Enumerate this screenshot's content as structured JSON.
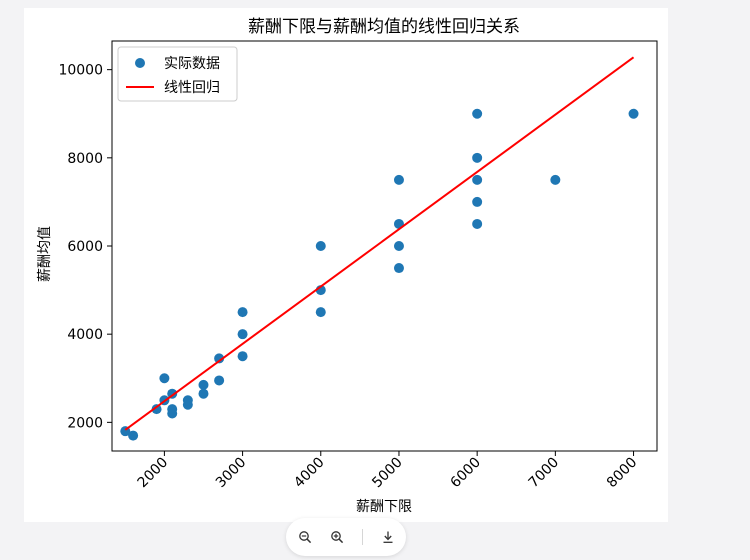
{
  "chart_data": {
    "type": "scatter",
    "title": "薪酬下限与薪酬均值的线性回归关系",
    "xlabel": "薪酬下限",
    "ylabel": "薪酬均值",
    "xlim": [
      1330,
      8300
    ],
    "ylim": [
      1350,
      10650
    ],
    "xticks": [
      2000,
      3000,
      4000,
      5000,
      6000,
      7000,
      8000
    ],
    "yticks": [
      2000,
      4000,
      6000,
      8000,
      10000
    ],
    "legend_position": "upper-left",
    "grid": false,
    "series": [
      {
        "name": "实际数据",
        "kind": "scatter",
        "color": "#1f77b4",
        "points": [
          [
            1500,
            1800
          ],
          [
            1600,
            1700
          ],
          [
            1900,
            2300
          ],
          [
            2000,
            2500
          ],
          [
            2000,
            3000
          ],
          [
            2100,
            2200
          ],
          [
            2100,
            2300
          ],
          [
            2100,
            2650
          ],
          [
            2300,
            2400
          ],
          [
            2300,
            2500
          ],
          [
            2500,
            2650
          ],
          [
            2500,
            2850
          ],
          [
            2700,
            2950
          ],
          [
            2700,
            3450
          ],
          [
            3000,
            3500
          ],
          [
            3000,
            4000
          ],
          [
            3000,
            4500
          ],
          [
            4000,
            4500
          ],
          [
            4000,
            5000
          ],
          [
            4000,
            6000
          ],
          [
            5000,
            5500
          ],
          [
            5000,
            6000
          ],
          [
            5000,
            6500
          ],
          [
            5000,
            7500
          ],
          [
            6000,
            6500
          ],
          [
            6000,
            7000
          ],
          [
            6000,
            7500
          ],
          [
            6000,
            8000
          ],
          [
            6000,
            9000
          ],
          [
            7000,
            7500
          ],
          [
            8000,
            9000
          ]
        ]
      },
      {
        "name": "线性回归",
        "kind": "line",
        "color": "#ff0000",
        "points": [
          [
            1500,
            1830
          ],
          [
            8000,
            10280
          ]
        ]
      }
    ]
  },
  "toolbar": {
    "zoom_out_icon": "zoom-out-icon",
    "zoom_in_icon": "zoom-in-icon",
    "download_icon": "download-icon"
  }
}
